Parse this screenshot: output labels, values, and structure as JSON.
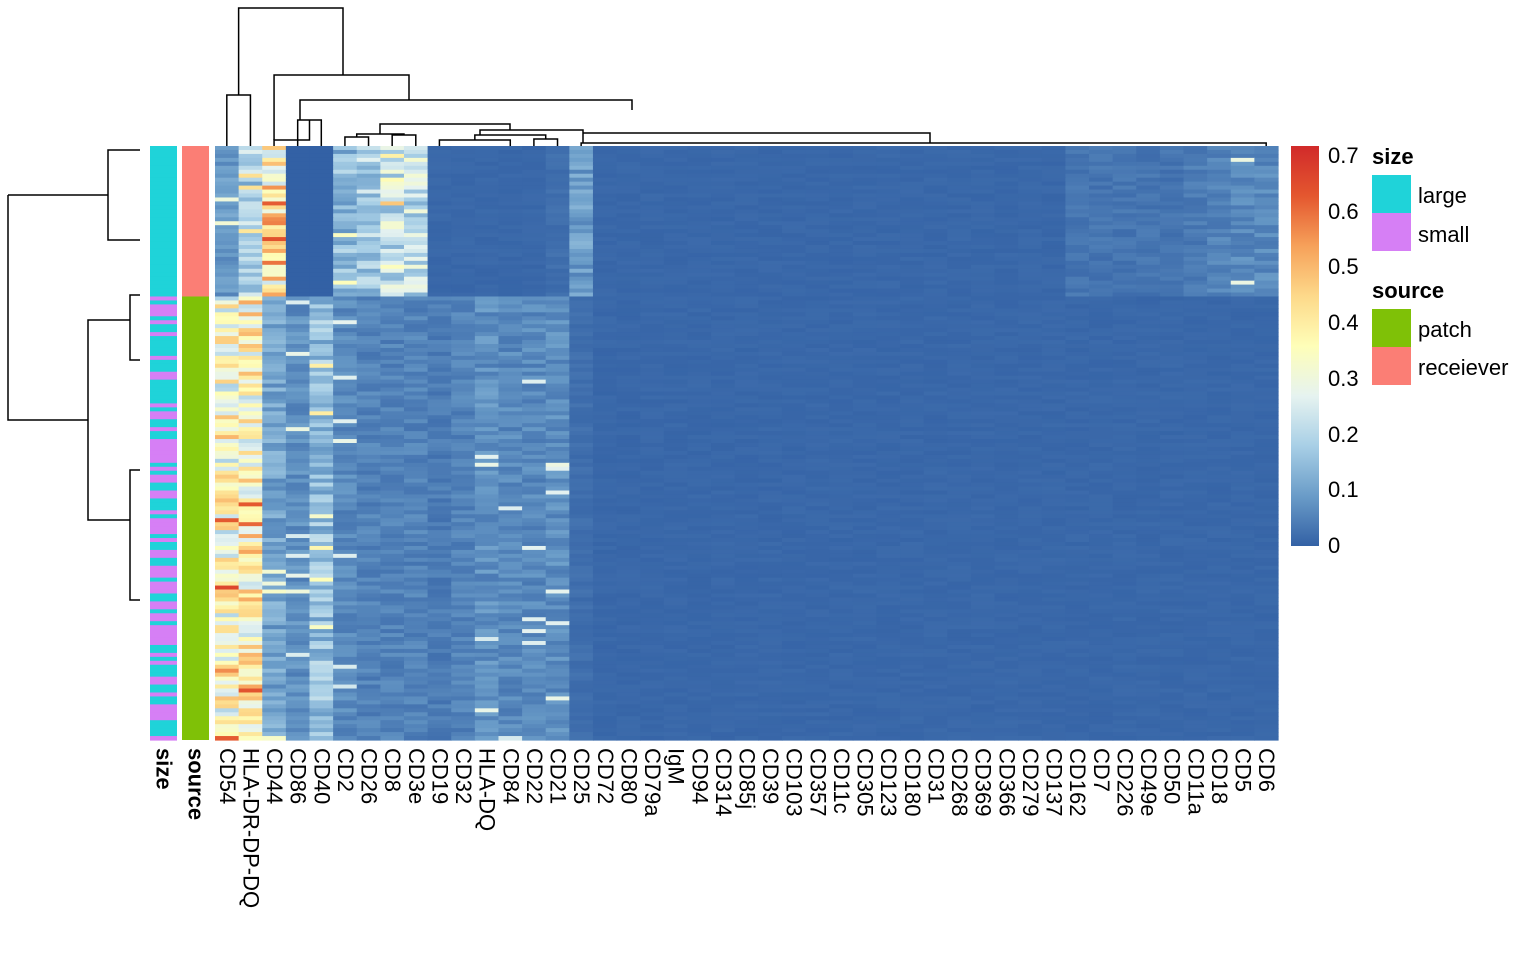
{
  "chart_data": {
    "type": "heatmap",
    "title": "",
    "columns": [
      "CD54",
      "HLA-DR-DP-DQ",
      "CD44",
      "CD86",
      "CD40",
      "CD2",
      "CD26",
      "CD8",
      "CD3e",
      "CD19",
      "CD32",
      "HLA-DQ",
      "CD84",
      "CD22",
      "CD21",
      "CD25",
      "CD72",
      "CD80",
      "CD79a",
      "IgM",
      "CD94",
      "CD314",
      "CD85j",
      "CD39",
      "CD103",
      "CD357",
      "CD11c",
      "CD305",
      "CD123",
      "CD180",
      "CD31",
      "CD268",
      "CD369",
      "CD366",
      "CD279",
      "CD137",
      "CD162",
      "CD7",
      "CD226",
      "CD49e",
      "CD50",
      "CD11a",
      "CD18",
      "CD5",
      "CD6"
    ],
    "row_annotation_labels": [
      "size",
      "source"
    ],
    "row_groups": [
      {
        "size_mix": "large",
        "source": "receiever",
        "fraction": 0.25,
        "column_means": [
          0.08,
          0.18,
          0.4,
          0.0,
          0.0,
          0.14,
          0.18,
          0.22,
          0.22,
          0.01,
          0.01,
          0.01,
          0.01,
          0.01,
          0.02,
          0.09,
          0.01,
          0.01,
          0.01,
          0.01,
          0.01,
          0.01,
          0.01,
          0.01,
          0.01,
          0.01,
          0.01,
          0.01,
          0.01,
          0.01,
          0.01,
          0.01,
          0.01,
          0.01,
          0.01,
          0.01,
          0.03,
          0.03,
          0.03,
          0.03,
          0.03,
          0.04,
          0.05,
          0.06,
          0.06
        ]
      },
      {
        "size_mix": "mixed",
        "source": "patch",
        "fraction": 0.75,
        "column_means": [
          0.33,
          0.36,
          0.1,
          0.07,
          0.15,
          0.06,
          0.05,
          0.05,
          0.05,
          0.04,
          0.05,
          0.07,
          0.06,
          0.06,
          0.07,
          0.02,
          0.01,
          0.01,
          0.01,
          0.01,
          0.01,
          0.01,
          0.01,
          0.01,
          0.01,
          0.01,
          0.01,
          0.01,
          0.01,
          0.01,
          0.01,
          0.01,
          0.01,
          0.01,
          0.01,
          0.01,
          0.01,
          0.01,
          0.01,
          0.01,
          0.01,
          0.01,
          0.01,
          0.01,
          0.01
        ]
      }
    ],
    "color_scale": {
      "min": 0,
      "max": 0.7,
      "ticks": [
        "0.7",
        "0.6",
        "0.5",
        "0.4",
        "0.3",
        "0.2",
        "0.1",
        "0"
      ],
      "colors": [
        "#3361a5",
        "#6a9cc8",
        "#a8cfe6",
        "#e6f3f0",
        "#fefeb8",
        "#fdd98a",
        "#f6a15a",
        "#e4572f",
        "#d12a2a"
      ]
    },
    "legends": [
      {
        "title": "size",
        "items": [
          {
            "label": "large",
            "color": "#1fd3d9"
          },
          {
            "label": "small",
            "color": "#d67ff5"
          }
        ]
      },
      {
        "title": "source",
        "items": [
          {
            "label": "patch",
            "color": "#7fc107"
          },
          {
            "label": "receiever",
            "color": "#fb7e75"
          }
        ]
      }
    ]
  }
}
